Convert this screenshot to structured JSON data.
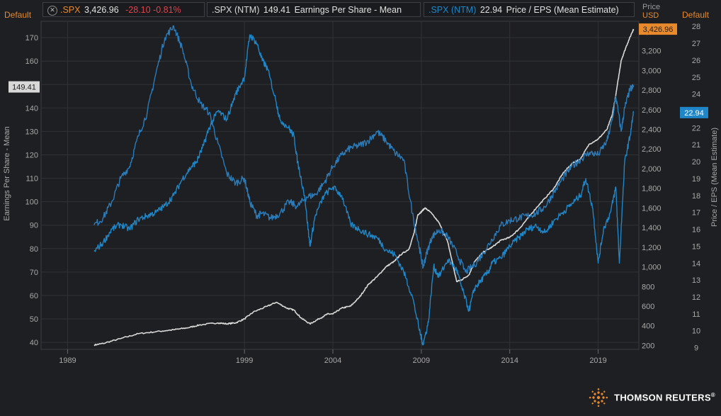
{
  "header": {
    "left_default": "Default",
    "right_default": "Default",
    "price_label": "Price",
    "price_currency": "USD"
  },
  "legend": [
    {
      "ticker": ".SPX",
      "value": "3,426.96",
      "change": "-28.10 -0.81%",
      "ticker_color": "#e8892c",
      "change_color": "#e0434a"
    },
    {
      "ticker": ".SPX (NTM)",
      "value": "149.41",
      "description": "Earnings Per Share - Mean",
      "ticker_color": "#d8d8d8"
    },
    {
      "ticker": ".SPX (NTM)",
      "value": "22.94",
      "description": "Price / EPS (Mean Estimate)",
      "ticker_color": "#1f86c8"
    }
  ],
  "logo": {
    "text": "THOMSON REUTERS",
    "mark": "®"
  },
  "chart_data": {
    "type": "line",
    "x_ticks": [
      "1989",
      "1999",
      "2004",
      "2009",
      "2014",
      "2019"
    ],
    "x_range": [
      1987.5,
      2021.3
    ],
    "axes": {
      "left": {
        "label": "Earnings Per Share - Mean",
        "range": [
          37,
          177
        ],
        "ticks": [
          "40",
          "50",
          "60",
          "70",
          "80",
          "90",
          "100",
          "110",
          "120",
          "130",
          "140",
          "150",
          "160",
          "170"
        ],
        "tick_values": [
          40,
          50,
          60,
          70,
          80,
          90,
          100,
          110,
          120,
          130,
          140,
          150,
          160,
          170
        ]
      },
      "price": {
        "label": "",
        "range": [
          160,
          3500
        ],
        "ticks": [
          "200",
          "400",
          "600",
          "800",
          "1,000",
          "1,200",
          "1,400",
          "1,600",
          "1,800",
          "2,000",
          "2,200",
          "2,400",
          "2,600",
          "2,800",
          "3,000",
          "3,200",
          "3,400"
        ],
        "tick_values": [
          200,
          400,
          600,
          800,
          1000,
          1200,
          1400,
          1600,
          1800,
          2000,
          2200,
          2400,
          2600,
          2800,
          3000,
          3200,
          3400
        ]
      },
      "right": {
        "label": "Price / EPS (Mean Estimate)",
        "range": [
          8.9,
          28.3
        ],
        "ticks": [
          "9",
          "10",
          "11",
          "12",
          "13",
          "14",
          "15",
          "16",
          "17",
          "18",
          "19",
          "20",
          "21",
          "22",
          "23",
          "24",
          "25",
          "26",
          "27",
          "28"
        ],
        "tick_values": [
          9,
          10,
          11,
          12,
          13,
          14,
          15,
          16,
          17,
          18,
          19,
          20,
          21,
          22,
          23,
          24,
          25,
          26,
          27,
          28
        ]
      }
    },
    "last_value_tags": {
      "eps": "149.41",
      "price": "3,426.96",
      "pe": "22.94"
    },
    "series": [
      {
        "name": ".SPX",
        "axis": "price",
        "color": "#d9d9d9",
        "x": [
          1990.5,
          1991.0,
          1992.0,
          1993.0,
          1994.0,
          1995.0,
          1995.8,
          1996.5,
          1997.5,
          1998.0,
          1998.5,
          1999.0,
          1999.5,
          2000.3,
          2000.8,
          2001.4,
          2001.8,
          2002.2,
          2002.7,
          2003.2,
          2003.7,
          2004.0,
          2004.5,
          2005.0,
          2005.5,
          2006.0,
          2006.5,
          2007.0,
          2007.5,
          2007.8,
          2008.3,
          2008.6,
          2008.8,
          2009.0,
          2009.2,
          2009.5,
          2010.0,
          2010.5,
          2011.0,
          2011.3,
          2011.7,
          2012.0,
          2012.5,
          2013.0,
          2013.5,
          2014.0,
          2014.5,
          2015.0,
          2015.5,
          2016.0,
          2016.5,
          2017.0,
          2017.5,
          2018.0,
          2018.5,
          2019.0,
          2019.5,
          2019.8,
          2020.0,
          2020.3,
          2020.6,
          2020.9,
          2021.0
        ],
        "y": [
          205,
          220,
          270,
          320,
          340,
          360,
          380,
          410,
          430,
          420,
          430,
          470,
          540,
          600,
          640,
          580,
          560,
          480,
          420,
          470,
          520,
          520,
          580,
          600,
          690,
          820,
          900,
          1000,
          1060,
          1120,
          1180,
          1350,
          1530,
          1560,
          1600,
          1560,
          1450,
          1250,
          850,
          870,
          920,
          1050,
          1150,
          1200,
          1270,
          1300,
          1380,
          1490,
          1600,
          1700,
          1800,
          1950,
          2050,
          2100,
          2250,
          2300,
          2400,
          2550,
          2750,
          3100,
          3250,
          3380,
          3420
        ]
      },
      {
        "name": ".SPX (NTM) Earnings Per Share - Mean",
        "axis": "left",
        "color": "#2b7bb9",
        "x": [
          1990.5,
          1991.0,
          1991.5,
          1992.0,
          1992.5,
          1993.0,
          1993.5,
          1994.0,
          1994.5,
          1995.0,
          1995.5,
          1996.0,
          1996.5,
          1997.0,
          1997.5,
          1998.0,
          1998.5,
          1999.0,
          1999.3,
          1999.7,
          2000.0,
          2000.5,
          2001.0,
          2001.5,
          2002.0,
          2002.5,
          2003.0,
          2003.5,
          2004.0,
          2004.5,
          2005.0,
          2005.5,
          2006.0,
          2006.5,
          2007.0,
          2007.5,
          2008.0,
          2008.5,
          2008.9,
          2009.1,
          2009.3,
          2009.6,
          2010.0,
          2010.5,
          2011.0,
          2011.5,
          2012.0,
          2012.5,
          2013.0,
          2013.5,
          2014.0,
          2014.5,
          2015.0,
          2015.5,
          2016.0,
          2016.5,
          2017.0,
          2017.5,
          2018.0,
          2018.5,
          2019.0,
          2019.5,
          2019.8,
          2020.0,
          2020.3,
          2020.5,
          2020.8,
          2021.0
        ],
        "y": [
          90,
          93,
          100,
          110,
          115,
          128,
          138,
          155,
          170,
          175,
          165,
          150,
          142,
          138,
          125,
          112,
          108,
          110,
          100,
          94,
          95,
          93,
          95,
          100,
          98,
          102,
          103,
          108,
          115,
          120,
          123,
          124,
          126,
          130,
          126,
          121,
          118,
          95,
          80,
          72,
          78,
          85,
          88,
          85,
          78,
          70,
          73,
          78,
          84,
          90,
          92,
          93,
          94,
          95,
          98,
          104,
          110,
          115,
          118,
          121,
          120,
          126,
          135,
          145,
          130,
          140,
          148,
          149
        ]
      },
      {
        "name": ".SPX (NTM) Price / EPS (Mean Estimate)",
        "axis": "right",
        "color": "#1f86c8",
        "x": [
          1990.5,
          1991.0,
          1991.5,
          1992.0,
          1992.5,
          1993.0,
          1993.5,
          1994.0,
          1994.5,
          1995.0,
          1995.5,
          1996.0,
          1996.3,
          1996.7,
          1997.0,
          1997.5,
          1998.0,
          1998.5,
          1999.0,
          1999.3,
          1999.7,
          2000.0,
          2000.3,
          2000.8,
          2001.0,
          2001.5,
          2001.8,
          2002.0,
          2002.4,
          2002.7,
          2003.0,
          2003.5,
          2004.0,
          2004.5,
          2005.0,
          2005.5,
          2006.0,
          2006.5,
          2007.0,
          2007.5,
          2008.0,
          2008.5,
          2008.9,
          2009.1,
          2009.4,
          2009.7,
          2010.0,
          2010.5,
          2011.0,
          2011.3,
          2011.7,
          2012.0,
          2012.4,
          2012.8,
          2013.0,
          2013.5,
          2014.0,
          2014.5,
          2015.0,
          2015.5,
          2016.0,
          2016.5,
          2017.0,
          2017.5,
          2018.0,
          2018.3,
          2018.7,
          2019.0,
          2019.3,
          2019.7,
          2020.0,
          2020.2,
          2020.5,
          2020.8,
          2021.0
        ],
        "y": [
          14.7,
          15.2,
          16.0,
          16.3,
          16.0,
          16.6,
          16.8,
          17.0,
          17.4,
          18.0,
          19.0,
          19.7,
          20.0,
          21.0,
          22.0,
          23.0,
          22.5,
          24.0,
          25.0,
          27.5,
          27.0,
          26.0,
          25.5,
          23.5,
          22.5,
          22.0,
          21.5,
          20.0,
          18.0,
          15.0,
          16.8,
          18.0,
          18.5,
          18.0,
          16.3,
          16.0,
          15.7,
          15.5,
          14.8,
          14.5,
          13.5,
          12.0,
          10.0,
          9.2,
          10.5,
          13.8,
          13.2,
          14.2,
          13.6,
          12.5,
          11.2,
          12.5,
          13.0,
          13.5,
          14.0,
          14.3,
          15.0,
          15.5,
          16.0,
          16.2,
          15.8,
          16.5,
          17.0,
          17.5,
          18.0,
          19.0,
          17.2,
          14.0,
          16.0,
          17.0,
          18.5,
          14.0,
          20.0,
          21.5,
          22.9
        ]
      }
    ]
  }
}
